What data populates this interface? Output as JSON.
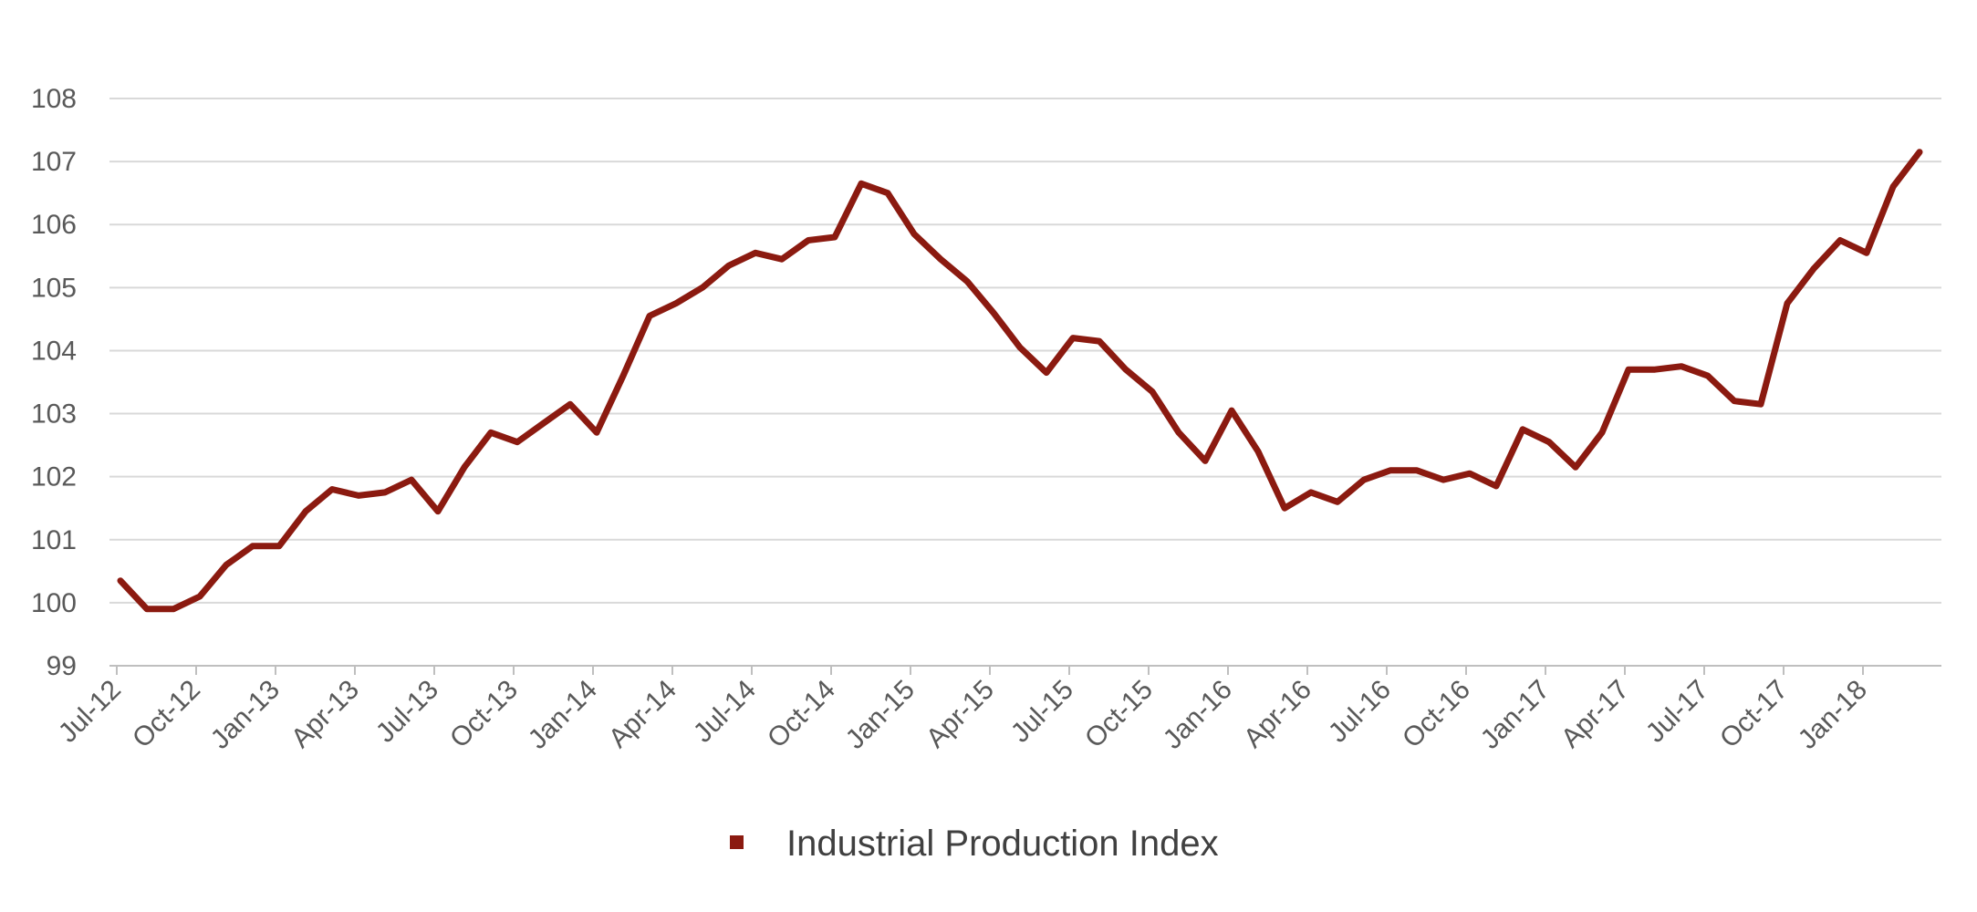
{
  "chart_data": {
    "type": "line",
    "title": "",
    "xlabel": "",
    "ylabel": "",
    "ylim": [
      99,
      108
    ],
    "yticks": [
      "99",
      "100",
      "101",
      "102",
      "103",
      "104",
      "105",
      "106",
      "107",
      "108"
    ],
    "x_tick_labels": [
      "Jul-12",
      "Oct-12",
      "Jan-13",
      "Apr-13",
      "Jul-13",
      "Oct-13",
      "Jan-14",
      "Apr-14",
      "Jul-14",
      "Oct-14",
      "Jan-15",
      "Apr-15",
      "Jul-15",
      "Oct-15",
      "Jan-16",
      "Apr-16",
      "Jul-16",
      "Oct-16",
      "Jan-17",
      "Apr-17",
      "Jul-17",
      "Oct-17",
      "Jan-18"
    ],
    "grid": true,
    "legend_position": "bottom-center",
    "color": "#8B1A10",
    "series": [
      {
        "name": "Industrial Production Index",
        "values": [
          100.35,
          99.9,
          99.9,
          100.1,
          100.6,
          100.9,
          100.9,
          101.45,
          101.8,
          101.7,
          101.75,
          101.95,
          101.45,
          102.15,
          102.7,
          102.55,
          102.85,
          103.15,
          102.7,
          103.6,
          104.55,
          104.75,
          105.0,
          105.35,
          105.55,
          105.45,
          105.75,
          105.8,
          106.65,
          106.5,
          105.85,
          105.45,
          105.1,
          104.6,
          104.05,
          103.65,
          104.2,
          104.15,
          103.7,
          103.35,
          102.7,
          102.25,
          103.05,
          102.4,
          101.5,
          101.75,
          101.6,
          101.95,
          102.1,
          102.1,
          101.95,
          102.05,
          101.85,
          102.75,
          102.55,
          102.15,
          102.7,
          103.7,
          103.7,
          103.75,
          103.6,
          103.2,
          103.15,
          104.75,
          105.3,
          105.75,
          105.55,
          106.6,
          107.15
        ]
      }
    ]
  }
}
